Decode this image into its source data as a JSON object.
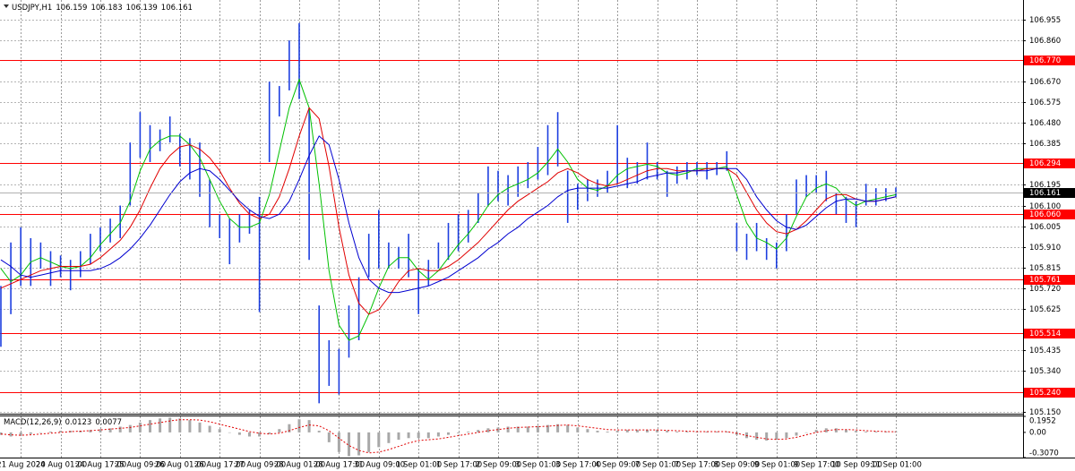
{
  "chart_data": {
    "type": "range",
    "symbol": "USDJPY,H1",
    "open": 106.159,
    "last": 106.161,
    "categories": [
      null,
      null,
      "21 Aug 2020",
      null,
      null,
      null,
      "24 Aug 01:00",
      null,
      null,
      null,
      "24 Aug 17:00",
      null,
      null,
      null,
      "25 Aug 09:00",
      null,
      null,
      null,
      "26 Aug 01:00",
      null,
      null,
      null,
      "26 Aug 17:00",
      null,
      null,
      null,
      "27 Aug 09:00",
      null,
      null,
      null,
      "28 Aug 01:00",
      null,
      null,
      null,
      "28 Aug 17:00",
      null,
      null,
      null,
      "31 Aug 09:00",
      null,
      null,
      null,
      "1 Sep 01:00",
      null,
      null,
      null,
      "1 Sep 17:00",
      null,
      null,
      null,
      "2 Sep 09:00",
      null,
      null,
      null,
      "3 Sep 01:00",
      null,
      null,
      null,
      "3 Sep 17:00",
      null,
      null,
      null,
      "4 Sep 09:00",
      null,
      null,
      null,
      "7 Sep 01:00",
      null,
      null,
      null,
      "7 Sep 17:00",
      null,
      null,
      null,
      "8 Sep 09:00",
      null,
      null,
      null,
      "9 Sep 01:00",
      null,
      null,
      null,
      "9 Sep 17:00",
      null,
      null,
      null,
      "10 Sep 09:00",
      null,
      null,
      null,
      "11 Sep 01:00"
    ],
    "price": {
      "color": "#1d3fe0",
      "high": [
        105.73,
        105.93,
        106.0,
        105.95,
        105.93,
        105.89,
        105.87,
        105.85,
        105.89,
        105.97,
        106.0,
        106.04,
        106.1,
        106.39,
        106.53,
        106.47,
        106.45,
        106.51,
        106.43,
        106.41,
        106.39,
        106.22,
        106.06,
        106.04,
        106.06,
        106.08,
        106.14,
        106.67,
        106.65,
        106.86,
        106.94,
        106.55,
        105.64,
        105.48,
        105.44,
        105.64,
        105.77,
        105.97,
        106.08,
        105.93,
        105.91,
        105.97,
        105.81,
        105.85,
        105.93,
        106.02,
        106.06,
        106.08,
        106.16,
        106.28,
        106.26,
        106.24,
        106.28,
        106.3,
        106.37,
        106.47,
        106.53,
        106.26,
        106.2,
        106.22,
        106.22,
        106.26,
        106.47,
        106.32,
        106.3,
        106.39,
        106.3,
        106.26,
        106.28,
        106.3,
        106.3,
        106.3,
        106.3,
        106.35,
        106.02,
        105.97,
        106.02,
        105.95,
        105.93,
        106.06,
        106.22,
        106.24,
        106.24,
        106.26,
        106.16,
        106.14,
        106.12,
        106.2,
        106.18,
        106.18,
        106.183
      ],
      "low": [
        105.45,
        105.6,
        105.73,
        105.73,
        105.81,
        105.73,
        105.77,
        105.71,
        105.77,
        105.83,
        105.89,
        105.93,
        105.95,
        106.1,
        106.32,
        106.3,
        106.35,
        106.39,
        106.28,
        106.22,
        106.14,
        106.0,
        105.95,
        105.83,
        105.93,
        105.97,
        105.61,
        106.3,
        106.51,
        106.63,
        106.59,
        105.85,
        105.19,
        105.27,
        105.23,
        105.4,
        105.48,
        105.77,
        105.81,
        105.81,
        105.81,
        105.77,
        105.6,
        105.73,
        105.81,
        105.85,
        105.89,
        105.93,
        106.02,
        106.1,
        106.12,
        106.1,
        106.14,
        106.18,
        106.22,
        106.24,
        106.28,
        106.02,
        106.08,
        106.12,
        106.14,
        106.16,
        106.2,
        106.18,
        106.2,
        106.22,
        106.22,
        106.14,
        106.2,
        106.22,
        106.24,
        106.22,
        106.24,
        106.26,
        105.89,
        105.85,
        105.89,
        105.85,
        105.81,
        105.89,
        106.06,
        106.14,
        106.16,
        106.12,
        106.06,
        106.02,
        106.0,
        106.1,
        106.1,
        106.12,
        106.139
      ]
    },
    "ma": [
      {
        "color": "#00c000",
        "values": [
          105.81,
          105.75,
          105.78,
          105.84,
          105.86,
          105.84,
          105.82,
          105.81,
          105.82,
          105.86,
          105.92,
          105.97,
          106.02,
          106.12,
          106.26,
          106.36,
          106.4,
          106.42,
          106.42,
          106.38,
          106.32,
          106.22,
          106.12,
          106.04,
          106.0,
          106.0,
          106.02,
          106.15,
          106.35,
          106.55,
          106.68,
          106.55,
          106.2,
          105.8,
          105.55,
          105.48,
          105.5,
          105.6,
          105.72,
          105.82,
          105.86,
          105.86,
          105.8,
          105.76,
          105.8,
          105.86,
          105.92,
          105.97,
          106.03,
          106.1,
          106.15,
          106.18,
          106.2,
          106.22,
          106.25,
          106.3,
          106.36,
          106.3,
          106.22,
          106.18,
          106.17,
          106.19,
          106.24,
          106.27,
          106.28,
          106.29,
          106.28,
          106.25,
          106.24,
          106.25,
          106.27,
          106.27,
          106.27,
          106.28,
          106.15,
          106.02,
          105.95,
          105.93,
          105.9,
          105.95,
          106.05,
          106.14,
          106.18,
          106.2,
          106.18,
          106.13,
          106.1,
          106.12,
          106.13,
          106.14,
          106.15
        ]
      },
      {
        "color": "#e00000",
        "values": [
          105.72,
          105.74,
          105.76,
          105.78,
          105.8,
          105.81,
          105.82,
          105.82,
          105.82,
          105.83,
          105.86,
          105.9,
          105.94,
          106.0,
          106.08,
          106.18,
          106.27,
          106.33,
          106.37,
          106.38,
          106.36,
          106.32,
          106.26,
          106.18,
          106.11,
          106.06,
          106.04,
          106.06,
          106.14,
          106.27,
          106.42,
          106.55,
          106.5,
          106.28,
          106.0,
          105.78,
          105.65,
          105.6,
          105.62,
          105.68,
          105.75,
          105.8,
          105.81,
          105.8,
          105.8,
          105.82,
          105.85,
          105.89,
          105.93,
          105.98,
          106.03,
          106.08,
          106.12,
          106.15,
          106.18,
          106.21,
          106.25,
          106.27,
          106.25,
          106.22,
          106.2,
          106.19,
          106.2,
          106.22,
          106.24,
          106.26,
          106.27,
          106.27,
          106.26,
          106.26,
          106.26,
          106.27,
          106.27,
          106.27,
          106.24,
          106.16,
          106.08,
          106.02,
          105.98,
          105.97,
          105.99,
          106.03,
          106.08,
          106.13,
          106.15,
          106.15,
          106.13,
          106.12,
          106.12,
          106.13,
          106.14
        ]
      },
      {
        "color": "#0000d0",
        "values": [
          105.85,
          105.82,
          105.78,
          105.77,
          105.78,
          105.79,
          105.8,
          105.8,
          105.8,
          105.8,
          105.81,
          105.83,
          105.86,
          105.9,
          105.95,
          106.01,
          106.08,
          106.15,
          106.21,
          106.25,
          106.27,
          106.26,
          106.22,
          106.17,
          106.12,
          106.08,
          106.05,
          106.04,
          106.06,
          106.12,
          106.22,
          106.33,
          106.42,
          106.38,
          106.22,
          106.02,
          105.86,
          105.76,
          105.72,
          105.7,
          105.7,
          105.71,
          105.72,
          105.73,
          105.75,
          105.77,
          105.8,
          105.83,
          105.86,
          105.9,
          105.93,
          105.97,
          106.0,
          106.04,
          106.07,
          106.1,
          106.14,
          106.17,
          106.18,
          106.18,
          106.18,
          106.18,
          106.19,
          106.2,
          106.21,
          106.23,
          106.24,
          106.25,
          106.25,
          106.26,
          106.26,
          106.26,
          106.27,
          106.27,
          106.27,
          106.22,
          106.14,
          106.08,
          106.03,
          106.0,
          105.99,
          106.01,
          106.05,
          106.09,
          106.12,
          106.13,
          106.13,
          106.12,
          106.12,
          106.13,
          106.14
        ]
      }
    ],
    "ylim": [
      105.142,
      107.046
    ],
    "yticks": [
      106.955,
      {
        "value": 106.86,
        "label": "106.860"
      },
      {
        "value": 106.67,
        "label": "106.670"
      },
      106.575,
      {
        "value": 106.48,
        "label": "106.480"
      },
      106.385,
      106.195,
      {
        "value": 106.1,
        "label": "106.100"
      },
      106.005,
      {
        "value": 105.91,
        "label": "105.910"
      },
      105.815,
      {
        "value": 105.72,
        "label": "105.720"
      },
      105.625,
      105.435,
      {
        "value": 105.34,
        "label": "105.340"
      },
      {
        "value": 105.15,
        "label": "105.150"
      }
    ],
    "levels": [
      {
        "value": 106.77,
        "label": "106.770"
      },
      106.294,
      {
        "value": 106.06,
        "label": "106.060"
      },
      105.761,
      105.514,
      {
        "value": 105.24,
        "label": "105.240"
      }
    ],
    "level_color": "#ff0000",
    "grid": true,
    "macd": {
      "title": "MACD(12,26,9)",
      "ylim": [
        -0.307,
        0.1952
      ],
      "yticks": [
        0.1952,
        {
          "value": 0,
          "label": "0.00"
        },
        {
          "value": -0.307,
          "label": "-0.3070"
        }
      ],
      "histogram_color": "#a8a8a8",
      "signal_color": "#e00000",
      "histogram": [
        -0.03,
        -0.05,
        -0.04,
        -0.02,
        0,
        0.01,
        0.02,
        0.02,
        0.02,
        0.03,
        0.04,
        0.05,
        0.07,
        0.09,
        0.12,
        0.15,
        0.17,
        0.18,
        0.17,
        0.15,
        0.12,
        0.08,
        0.04,
        0,
        -0.03,
        -0.05,
        -0.05,
        -0.02,
        0.04,
        0.1,
        0.16,
        0.15,
        0.02,
        -0.12,
        -0.24,
        -0.29,
        -0.28,
        -0.24,
        -0.18,
        -0.13,
        -0.09,
        -0.07,
        -0.07,
        -0.07,
        -0.05,
        -0.03,
        -0.01,
        0.01,
        0.03,
        0.05,
        0.06,
        0.07,
        0.07,
        0.07,
        0.08,
        0.09,
        0.1,
        0.09,
        0.06,
        0.04,
        0.02,
        0.01,
        0.02,
        0.03,
        0.03,
        0.03,
        0.03,
        0.02,
        0.01,
        0.01,
        0.01,
        0.01,
        0.01,
        0.01,
        -0.03,
        -0.07,
        -0.09,
        -0.1,
        -0.09,
        -0.07,
        -0.04,
        0,
        0.03,
        0.05,
        0.05,
        0.03,
        0.02,
        0.01,
        0.01,
        0.01,
        0.0123
      ],
      "signal": [
        -0.02,
        -0.03,
        -0.035,
        -0.03,
        -0.02,
        -0.01,
        0,
        0.01,
        0.015,
        0.02,
        0.03,
        0.04,
        0.05,
        0.06,
        0.08,
        0.1,
        0.12,
        0.14,
        0.155,
        0.155,
        0.15,
        0.13,
        0.1,
        0.07,
        0.04,
        0.01,
        -0.01,
        -0.02,
        -0.01,
        0.02,
        0.06,
        0.09,
        0.08,
        0.02,
        -0.07,
        -0.16,
        -0.22,
        -0.25,
        -0.24,
        -0.21,
        -0.17,
        -0.13,
        -0.1,
        -0.09,
        -0.08,
        -0.06,
        -0.04,
        -0.02,
        0,
        0.02,
        0.035,
        0.05,
        0.06,
        0.065,
        0.07,
        0.075,
        0.085,
        0.09,
        0.08,
        0.065,
        0.05,
        0.035,
        0.03,
        0.03,
        0.03,
        0.03,
        0.03,
        0.025,
        0.02,
        0.015,
        0.01,
        0.01,
        0.01,
        0.01,
        -0.01,
        -0.04,
        -0.06,
        -0.08,
        -0.085,
        -0.08,
        -0.06,
        -0.03,
        0,
        0.02,
        0.035,
        0.035,
        0.03,
        0.02,
        0.015,
        0.01,
        0.0077
      ]
    }
  }
}
